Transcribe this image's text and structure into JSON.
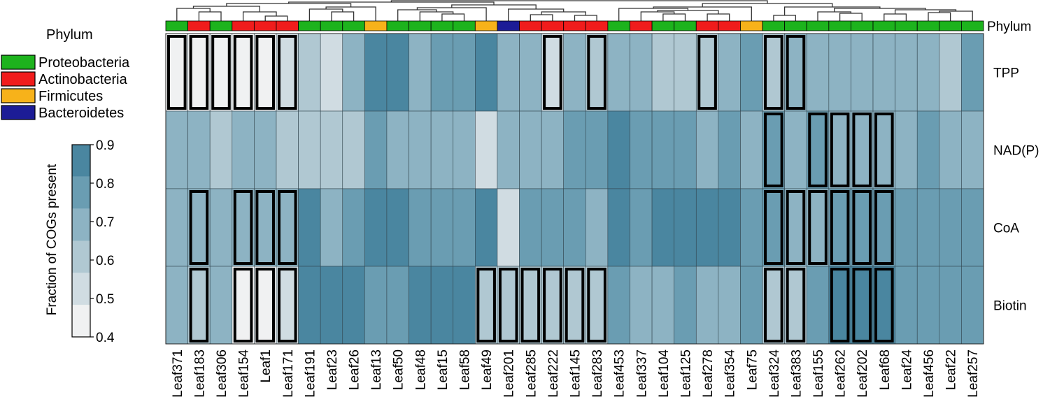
{
  "chart_data": {
    "type": "heatmap",
    "title": "",
    "columns": [
      "Leaf371",
      "Leaf183",
      "Leaf306",
      "Leaf154",
      "Leaf1",
      "Leaf171",
      "Leaf191",
      "Leaf23",
      "Leaf26",
      "Leaf13",
      "Leaf50",
      "Leaf48",
      "Leaf15",
      "Leaf58",
      "Leaf49",
      "Leaf201",
      "Leaf285",
      "Leaf222",
      "Leaf145",
      "Leaf283",
      "Leaf453",
      "Leaf337",
      "Leaf104",
      "Leaf125",
      "Leaf278",
      "Leaf354",
      "Leaf75",
      "Leaf324",
      "Leaf383",
      "Leaf155",
      "Leaf262",
      "Leaf202",
      "Leaf68",
      "Leaf24",
      "Leaf456",
      "Leaf22",
      "Leaf257"
    ],
    "rows": [
      "TPP",
      "NAD(P)",
      "CoA",
      "Biotin"
    ],
    "phylum_row_label": "Phylum",
    "phylum": [
      "Proteobacteria",
      "Actinobacteria",
      "Proteobacteria",
      "Actinobacteria",
      "Actinobacteria",
      "Actinobacteria",
      "Proteobacteria",
      "Proteobacteria",
      "Proteobacteria",
      "Firmicutes",
      "Proteobacteria",
      "Proteobacteria",
      "Proteobacteria",
      "Proteobacteria",
      "Firmicutes",
      "Bacteroidetes",
      "Actinobacteria",
      "Actinobacteria",
      "Actinobacteria",
      "Actinobacteria",
      "Proteobacteria",
      "Actinobacteria",
      "Proteobacteria",
      "Proteobacteria",
      "Actinobacteria",
      "Actinobacteria",
      "Firmicutes",
      "Proteobacteria",
      "Proteobacteria",
      "Proteobacteria",
      "Proteobacteria",
      "Proteobacteria",
      "Proteobacteria",
      "Proteobacteria",
      "Proteobacteria",
      "Proteobacteria",
      "Proteobacteria"
    ],
    "values": [
      [
        0.45,
        0.42,
        0.42,
        0.45,
        0.48,
        0.52,
        0.62,
        0.55,
        0.65,
        0.85,
        0.85,
        0.72,
        0.75,
        0.75,
        0.85,
        0.72,
        0.72,
        0.52,
        0.7,
        0.62,
        0.72,
        0.7,
        0.6,
        0.58,
        0.62,
        0.7,
        0.78,
        0.62,
        0.7,
        0.72,
        0.72,
        0.7,
        0.72,
        0.68,
        0.7,
        0.62,
        0.75
      ],
      [
        0.72,
        0.68,
        0.62,
        0.7,
        0.65,
        0.62,
        0.62,
        0.6,
        0.58,
        0.75,
        0.72,
        0.68,
        0.72,
        0.68,
        0.52,
        0.68,
        0.68,
        0.72,
        0.75,
        0.78,
        0.88,
        0.78,
        0.75,
        0.75,
        0.72,
        0.78,
        0.7,
        0.75,
        0.72,
        0.75,
        0.72,
        0.72,
        0.72,
        0.7,
        0.8,
        0.7,
        0.72
      ],
      [
        0.72,
        0.72,
        0.7,
        0.72,
        0.72,
        0.72,
        0.85,
        0.72,
        0.78,
        0.85,
        0.82,
        0.75,
        0.78,
        0.75,
        0.82,
        0.52,
        0.78,
        0.75,
        0.75,
        0.68,
        0.82,
        0.78,
        0.85,
        0.85,
        0.85,
        0.88,
        0.75,
        0.75,
        0.72,
        0.72,
        0.75,
        0.75,
        0.75,
        0.75,
        0.78,
        0.75,
        0.75
      ],
      [
        0.7,
        0.6,
        0.7,
        0.42,
        0.45,
        0.52,
        0.85,
        0.88,
        0.85,
        0.78,
        0.78,
        0.85,
        0.85,
        0.85,
        0.62,
        0.62,
        0.62,
        0.62,
        0.62,
        0.62,
        0.78,
        0.7,
        0.72,
        0.75,
        0.72,
        0.7,
        0.75,
        0.62,
        0.62,
        0.75,
        0.82,
        0.82,
        0.82,
        0.8,
        0.78,
        0.8,
        0.8
      ]
    ],
    "highlighted_cells": [
      [
        1,
        1,
        1,
        1,
        1,
        1,
        0,
        0,
        0,
        0,
        0,
        0,
        0,
        0,
        0,
        0,
        0,
        1,
        0,
        1,
        0,
        0,
        0,
        0,
        1,
        0,
        0,
        1,
        1,
        0,
        0,
        0,
        0,
        0,
        0,
        0,
        0
      ],
      [
        0,
        0,
        0,
        0,
        0,
        0,
        0,
        0,
        0,
        0,
        0,
        0,
        0,
        0,
        0,
        0,
        0,
        0,
        0,
        0,
        0,
        0,
        0,
        0,
        0,
        0,
        0,
        1,
        0,
        1,
        1,
        1,
        1,
        0,
        0,
        0,
        0
      ],
      [
        0,
        1,
        0,
        1,
        1,
        1,
        0,
        0,
        0,
        0,
        0,
        0,
        0,
        0,
        0,
        0,
        0,
        0,
        0,
        0,
        0,
        0,
        0,
        0,
        0,
        0,
        0,
        1,
        1,
        1,
        1,
        1,
        1,
        0,
        0,
        0,
        0
      ],
      [
        0,
        1,
        0,
        1,
        1,
        1,
        0,
        0,
        0,
        0,
        0,
        0,
        0,
        0,
        1,
        1,
        1,
        1,
        1,
        1,
        0,
        0,
        0,
        0,
        0,
        0,
        0,
        1,
        1,
        0,
        1,
        1,
        1,
        0,
        0,
        0,
        0
      ]
    ],
    "legend": {
      "title": "Phylum",
      "entries": [
        {
          "label": "Proteobacteria",
          "color": "#1db31d"
        },
        {
          "label": "Actinobacteria",
          "color": "#f01c1c"
        },
        {
          "label": "Firmicutes",
          "color": "#f7b21a"
        },
        {
          "label": "Bacteroidetes",
          "color": "#1c1c96"
        }
      ]
    },
    "colorbar": {
      "label": "Fraction of COGs present",
      "ticks": [
        "0.9",
        "0.8",
        "0.7",
        "0.6",
        "0.5",
        "0.4"
      ],
      "range": [
        0.4,
        0.9
      ],
      "colors": [
        "#f0f1f2",
        "#d0dce2",
        "#b0c8d2",
        "#8db3c3",
        "#6a9db2",
        "#4a86a0"
      ]
    },
    "dendrogram": "hierarchical clustering of columns (tree shown above phylum bar)"
  }
}
